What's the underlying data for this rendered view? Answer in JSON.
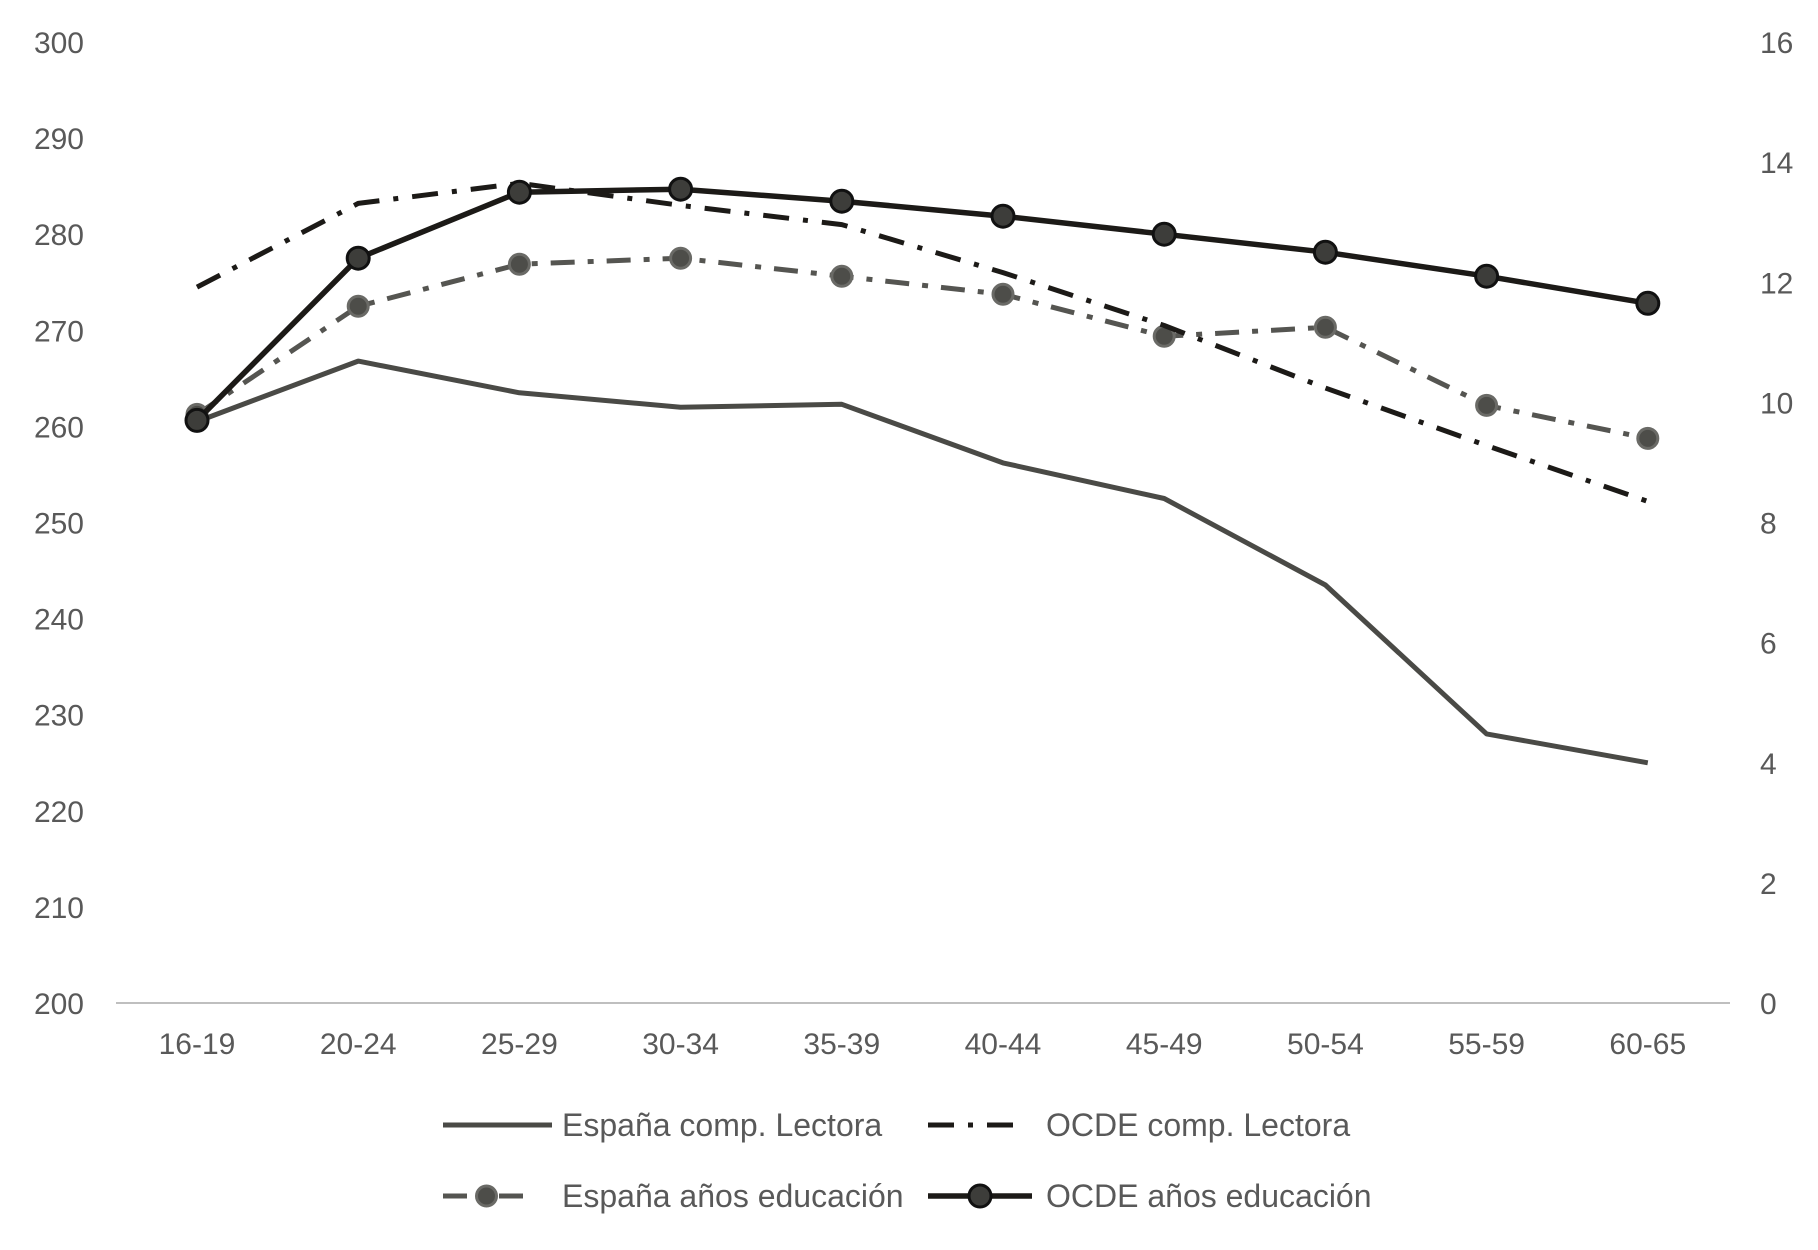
{
  "chart_data": {
    "type": "line",
    "title": "",
    "xlabel": "",
    "ylabel": "",
    "y2label": "",
    "categories": [
      "16-19",
      "20-24",
      "25-29",
      "30-34",
      "35-39",
      "40-44",
      "45-49",
      "50-54",
      "55-59",
      "60-65"
    ],
    "ylim": [
      200,
      300
    ],
    "yticks": [
      200,
      210,
      220,
      230,
      240,
      250,
      260,
      270,
      280,
      290,
      300
    ],
    "y2lim": [
      0,
      16
    ],
    "y2ticks": [
      0,
      2,
      4,
      6,
      8,
      10,
      12,
      14,
      16
    ],
    "grid": false,
    "legend_position": "bottom",
    "series": [
      {
        "name": "España comp. Lectora",
        "axis": "left",
        "style": "solid",
        "color": "#4a4a46",
        "markers": false,
        "values": [
          260.5,
          266.8,
          263.5,
          262.0,
          262.3,
          256.2,
          252.5,
          243.5,
          228.0,
          225.0
        ]
      },
      {
        "name": "OCDE comp. Lectora",
        "axis": "left",
        "style": "dashdot",
        "color": "#1c1a17",
        "markers": false,
        "values": [
          274.5,
          283.2,
          285.3,
          283.0,
          281.0,
          276.0,
          270.5,
          264.0,
          258.0,
          252.2
        ]
      },
      {
        "name": "España años educación",
        "axis": "right",
        "style": "dashdot-marker",
        "color": "#555551",
        "markers": true,
        "values": [
          9.8,
          11.6,
          12.3,
          12.4,
          12.1,
          11.8,
          11.1,
          11.25,
          9.95,
          9.4
        ]
      },
      {
        "name": "OCDE años educación",
        "axis": "right",
        "style": "solid-marker",
        "color": "#1c1a17",
        "markers": true,
        "values": [
          9.7,
          12.4,
          13.5,
          13.55,
          13.35,
          13.1,
          12.8,
          12.5,
          12.1,
          11.65
        ]
      }
    ]
  }
}
